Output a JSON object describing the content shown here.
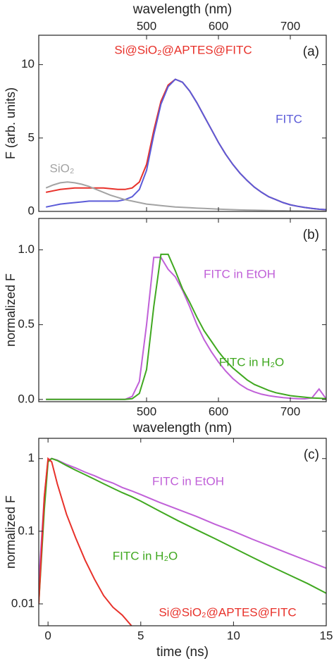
{
  "chart_data": [
    {
      "type": "line",
      "panel_label": "(a)",
      "x_label": "wavelength (nm)",
      "x_label_position": "top",
      "y_label": "F (arb. units)",
      "xlim": [
        350,
        750
      ],
      "xticks": [
        500,
        600,
        700
      ],
      "ylim": [
        0,
        12
      ],
      "yticks": [
        0,
        5,
        10
      ],
      "x": [
        360,
        370,
        380,
        390,
        400,
        410,
        420,
        430,
        440,
        450,
        460,
        470,
        480,
        490,
        500,
        510,
        520,
        530,
        540,
        550,
        560,
        570,
        580,
        590,
        600,
        610,
        620,
        630,
        640,
        650,
        660,
        670,
        680,
        690,
        700,
        710,
        720,
        730,
        740,
        750
      ],
      "series": [
        {
          "name": "Si@SiO₂@APTES@FITC",
          "color": "#e8312a",
          "values": [
            1.3,
            1.4,
            1.5,
            1.55,
            1.6,
            1.6,
            1.6,
            1.6,
            1.6,
            1.55,
            1.5,
            1.5,
            1.6,
            2.0,
            3.2,
            5.5,
            7.5,
            8.6,
            9.0,
            8.8,
            8.2,
            7.4,
            6.5,
            5.6,
            4.7,
            3.9,
            3.2,
            2.6,
            2.1,
            1.65,
            1.3,
            1.0,
            0.8,
            0.6,
            0.45,
            0.35,
            0.27,
            0.2,
            0.15,
            0.12
          ]
        },
        {
          "name": "FITC",
          "color": "#5b5bd8",
          "values": [
            0.3,
            0.4,
            0.5,
            0.55,
            0.6,
            0.65,
            0.7,
            0.7,
            0.7,
            0.7,
            0.7,
            0.8,
            1.0,
            1.5,
            2.8,
            5.2,
            7.3,
            8.5,
            9.0,
            8.8,
            8.2,
            7.4,
            6.5,
            5.6,
            4.7,
            3.9,
            3.2,
            2.6,
            2.1,
            1.65,
            1.3,
            1.0,
            0.8,
            0.6,
            0.45,
            0.35,
            0.27,
            0.2,
            0.15,
            0.12
          ]
        },
        {
          "name": "SiO₂",
          "color": "#a3a3a3",
          "values": [
            1.6,
            1.8,
            1.95,
            2.0,
            1.95,
            1.85,
            1.7,
            1.5,
            1.3,
            1.1,
            0.95,
            0.8,
            0.7,
            0.6,
            0.5,
            0.45,
            0.4,
            0.35,
            0.3,
            0.28,
            0.25,
            0.22,
            0.2,
            0.18,
            0.16,
            0.14,
            0.12,
            0.1,
            0.09,
            0.08,
            0.07,
            0.06,
            0.05,
            0.05,
            0.04,
            0.04,
            0.03,
            0.03,
            0.02,
            0.02
          ]
        }
      ]
    },
    {
      "type": "line",
      "panel_label": "(b)",
      "x_label": "wavelength (nm)",
      "x_label_position": "bottom",
      "y_label": "normalized F",
      "xlim": [
        350,
        750
      ],
      "xticks": [
        500,
        600,
        700
      ],
      "ylim": [
        -0.015,
        1.21
      ],
      "yticks": [
        {
          "value": 0,
          "label": "0.0"
        },
        {
          "value": 0.5,
          "label": "0.5"
        },
        {
          "value": 1,
          "label": "1.0"
        }
      ],
      "x": [
        360,
        370,
        380,
        390,
        400,
        410,
        420,
        430,
        440,
        450,
        460,
        470,
        480,
        490,
        500,
        510,
        520,
        530,
        540,
        550,
        560,
        570,
        580,
        590,
        600,
        610,
        620,
        630,
        640,
        650,
        660,
        670,
        680,
        690,
        700,
        710,
        720,
        730,
        740,
        750
      ],
      "series": [
        {
          "name": "FITC in EtOH",
          "color": "#c060d8",
          "values": [
            0,
            0,
            0,
            0,
            0,
            0,
            0,
            0,
            0,
            0,
            0,
            0,
            0.02,
            0.12,
            0.5,
            0.95,
            0.95,
            0.87,
            0.82,
            0.73,
            0.62,
            0.5,
            0.4,
            0.32,
            0.25,
            0.19,
            0.14,
            0.1,
            0.07,
            0.05,
            0.035,
            0.025,
            0.018,
            0.012,
            0.008,
            0.005,
            0.004,
            0.01,
            0.07,
            0.003
          ]
        },
        {
          "name": "FITC in H₂O",
          "color": "#40a820",
          "values": [
            0,
            0,
            0,
            0,
            0,
            0,
            0,
            0,
            0,
            0,
            0,
            0,
            0.005,
            0.04,
            0.2,
            0.62,
            0.97,
            0.97,
            0.86,
            0.74,
            0.65,
            0.55,
            0.46,
            0.39,
            0.32,
            0.26,
            0.21,
            0.17,
            0.13,
            0.1,
            0.08,
            0.06,
            0.045,
            0.035,
            0.025,
            0.02,
            0.015,
            0.01,
            0.008,
            0.005
          ]
        }
      ]
    },
    {
      "type": "line",
      "panel_label": "(c)",
      "x_label": "time (ns)",
      "x_label_position": "bottom",
      "y_label": "normalized F",
      "log_y": true,
      "xlim": [
        -0.5,
        15
      ],
      "xticks": [
        0,
        5,
        10,
        15
      ],
      "ylim": [
        0.005,
        1.9
      ],
      "yticks": [
        0.01,
        0.1,
        1
      ],
      "x": [
        -0.5,
        -0.2,
        0,
        0.2,
        0.5,
        1,
        1.5,
        2,
        2.5,
        3,
        3.5,
        4,
        4.5,
        5,
        6,
        7,
        8,
        9,
        10,
        11,
        12,
        13,
        14,
        15
      ],
      "series": [
        {
          "name": "FITC in EtOH",
          "color": "#c060d8",
          "values": [
            0.02,
            0.3,
            0.95,
            1,
            0.95,
            0.83,
            0.74,
            0.65,
            0.58,
            0.51,
            0.46,
            0.4,
            0.36,
            0.32,
            0.25,
            0.2,
            0.16,
            0.125,
            0.1,
            0.078,
            0.062,
            0.049,
            0.039,
            0.031
          ]
        },
        {
          "name": "FITC in H₂O",
          "color": "#40a820",
          "values": [
            0.01,
            0.2,
            0.9,
            1,
            0.94,
            0.8,
            0.69,
            0.6,
            0.52,
            0.45,
            0.39,
            0.34,
            0.3,
            0.26,
            0.19,
            0.14,
            0.105,
            0.079,
            0.059,
            0.044,
            0.033,
            0.025,
            0.019,
            0.014
          ]
        },
        {
          "name": "Si@SiO₂@APTES@FITC",
          "color": "#e8312a",
          "values": [
            0.01,
            0.3,
            1,
            0.9,
            0.45,
            0.17,
            0.08,
            0.04,
            0.022,
            0.013,
            0.009,
            0.007,
            0.005,
            null,
            null,
            null,
            null,
            null,
            null,
            null,
            null,
            null,
            null,
            null
          ]
        }
      ]
    }
  ]
}
